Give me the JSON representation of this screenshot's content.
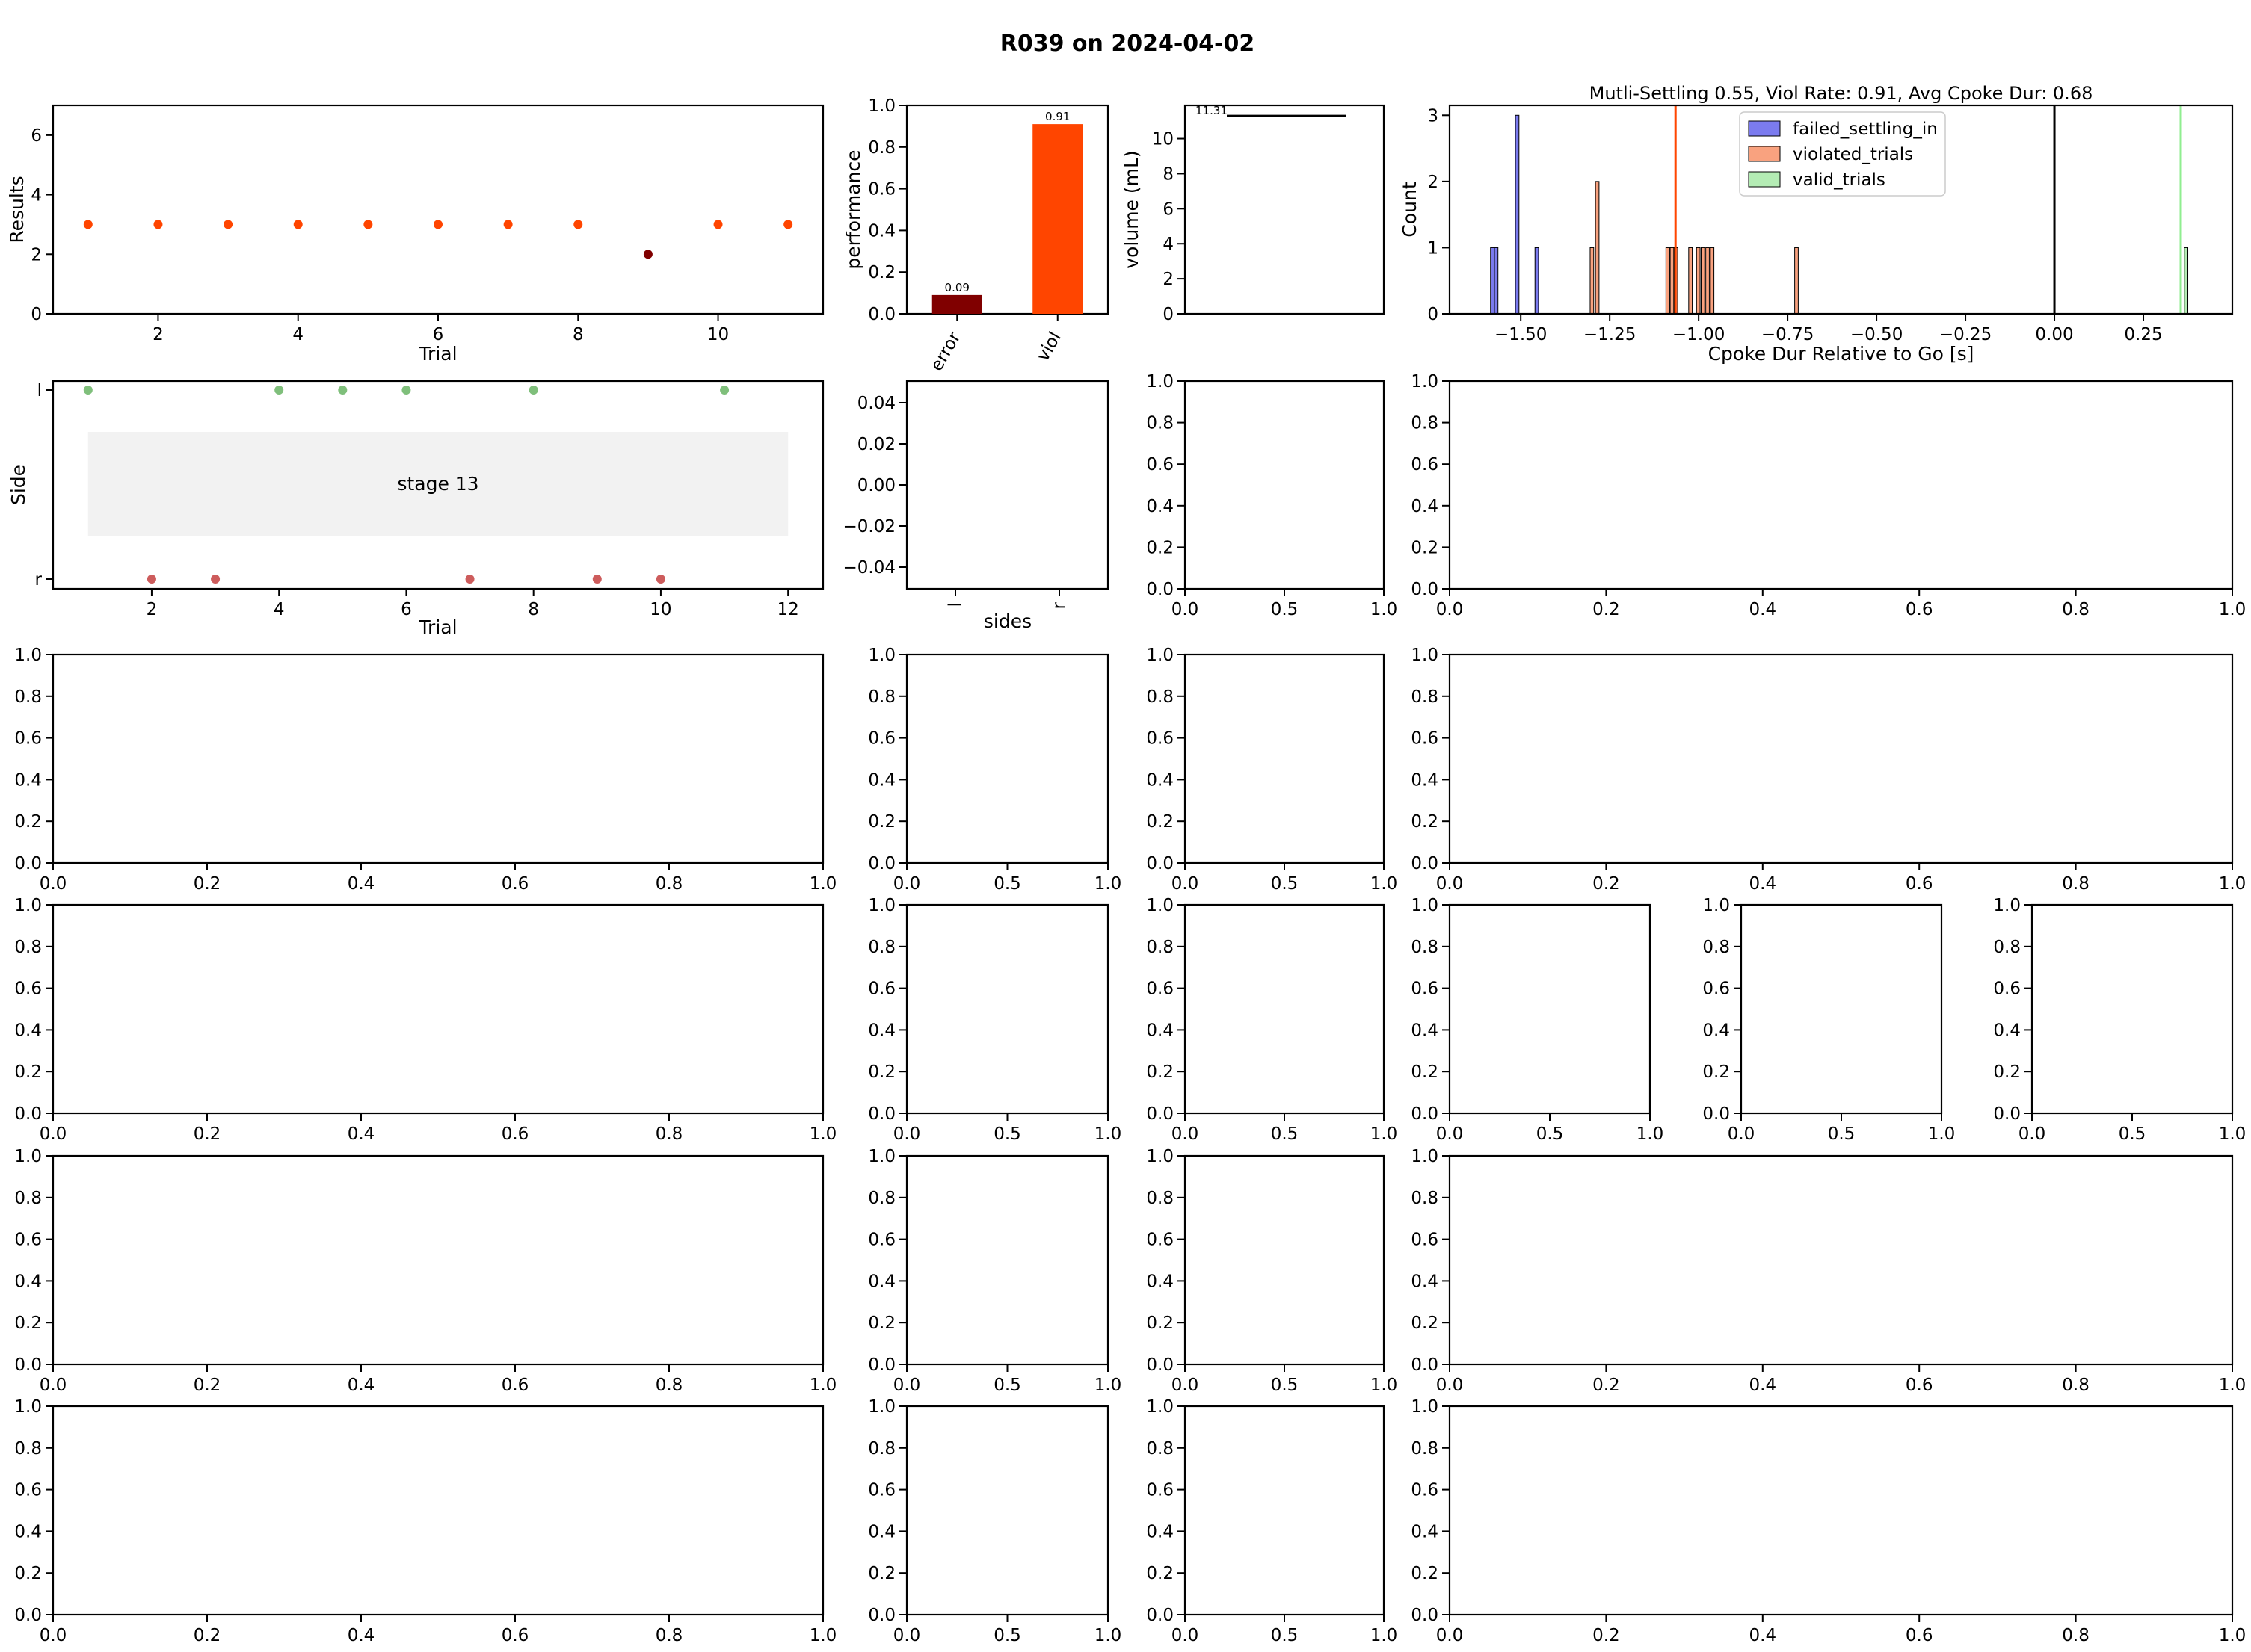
{
  "figure": {
    "suptitle": "R039 on 2024-04-02"
  },
  "colors": {
    "viol": "#ff4500",
    "error": "#800000",
    "hit_l": "#7fbf7b",
    "hit_r": "#cd5c5c",
    "failed_settling_in": "#7b7bef",
    "violated_trials": "#f9a27f",
    "valid_trials": "#b4ecb4",
    "violation_line": "#ff4500",
    "valid_line": "#90ee90",
    "stage_box": "#f2f2f2"
  },
  "chart_data": [
    {
      "id": "results",
      "type": "scatter",
      "xlabel": "Trial",
      "ylabel": "Results",
      "xlim": [
        0.5,
        11.5
      ],
      "ylim": [
        0,
        7
      ],
      "xticks": [
        2,
        4,
        6,
        8,
        10
      ],
      "yticks": [
        0,
        2,
        4,
        6
      ],
      "points": [
        {
          "x": 1,
          "y": 3,
          "cat": "viol"
        },
        {
          "x": 2,
          "y": 3,
          "cat": "viol"
        },
        {
          "x": 3,
          "y": 3,
          "cat": "viol"
        },
        {
          "x": 4,
          "y": 3,
          "cat": "viol"
        },
        {
          "x": 5,
          "y": 3,
          "cat": "viol"
        },
        {
          "x": 6,
          "y": 3,
          "cat": "viol"
        },
        {
          "x": 7,
          "y": 3,
          "cat": "viol"
        },
        {
          "x": 8,
          "y": 3,
          "cat": "viol"
        },
        {
          "x": 9,
          "y": 2,
          "cat": "error"
        },
        {
          "x": 10,
          "y": 3,
          "cat": "viol"
        },
        {
          "x": 11,
          "y": 3,
          "cat": "viol"
        }
      ]
    },
    {
      "id": "performance",
      "type": "bar",
      "ylabel": "performance",
      "categories": [
        "error",
        "viol"
      ],
      "values": [
        0.09,
        0.91
      ],
      "labels": [
        "0.09",
        "0.91"
      ],
      "ylim": [
        0,
        1
      ],
      "yticks": [
        "0.0",
        "0.2",
        "0.4",
        "0.6",
        "0.8",
        "1.0"
      ]
    },
    {
      "id": "volume",
      "type": "line",
      "ylabel": "volume (mL)",
      "ylim": [
        0,
        11.9
      ],
      "yticks": [
        0,
        2,
        4,
        6,
        8,
        10
      ],
      "value_label": "11.31",
      "value": 11.31
    },
    {
      "id": "cpoke",
      "type": "bar",
      "title": "Mutli-Settling 0.55, Viol Rate: 0.91,  Avg Cpoke Dur: 0.68",
      "xlabel": "Cpoke Dur Relative to Go [s]",
      "ylabel": "Count",
      "xlim": [
        -1.7,
        0.5
      ],
      "ylim": [
        0,
        3.15
      ],
      "xticks": [
        "−1.50",
        "−1.25",
        "−1.00",
        "−0.75",
        "−0.50",
        "−0.25",
        "0.00",
        "0.25"
      ],
      "xtick_values": [
        -1.5,
        -1.25,
        -1.0,
        -0.75,
        -0.5,
        -0.25,
        0.0,
        0.25
      ],
      "yticks": [
        0,
        1,
        2,
        3
      ],
      "bin_width": 0.01,
      "series": [
        {
          "name": "failed_settling_in",
          "bins": [
            [
              -1.585,
              1
            ],
            [
              -1.574,
              1
            ],
            [
              -1.515,
              3
            ],
            [
              -1.46,
              1
            ]
          ]
        },
        {
          "name": "violated_trials",
          "bins": [
            [
              -1.305,
              1
            ],
            [
              -1.29,
              2
            ],
            [
              -1.092,
              1
            ],
            [
              -1.08,
              1
            ],
            [
              -1.069,
              1
            ],
            [
              -1.028,
              1
            ],
            [
              -1.006,
              1
            ],
            [
              -0.993,
              1
            ],
            [
              -0.98,
              1
            ],
            [
              -0.967,
              1
            ],
            [
              -0.73,
              1
            ]
          ]
        },
        {
          "name": "valid_trials",
          "bins": [
            [
              0.365,
              1
            ]
          ]
        }
      ],
      "vlines": [
        {
          "x": -1.065,
          "kind": "violation"
        },
        {
          "x": 0.0,
          "kind": "go"
        },
        {
          "x": 0.355,
          "kind": "valid"
        }
      ],
      "legend_loc": "upper center"
    },
    {
      "id": "side",
      "type": "scatter",
      "xlabel": "Trial",
      "ylabel": "Side",
      "xlim": [
        0.45,
        12.55
      ],
      "xticks": [
        2,
        4,
        6,
        8,
        10,
        12
      ],
      "yticks": [
        "l",
        "r"
      ],
      "annotation": "stage 13",
      "points": [
        {
          "x": 1,
          "side": "l"
        },
        {
          "x": 2,
          "side": "r"
        },
        {
          "x": 3,
          "side": "r"
        },
        {
          "x": 4,
          "side": "l"
        },
        {
          "x": 5,
          "side": "l"
        },
        {
          "x": 6,
          "side": "l"
        },
        {
          "x": 7,
          "side": "r"
        },
        {
          "x": 8,
          "side": "l"
        },
        {
          "x": 9,
          "side": "r"
        },
        {
          "x": 10,
          "side": "r"
        },
        {
          "x": 11,
          "side": "l"
        }
      ]
    },
    {
      "id": "sides_bar",
      "type": "bar",
      "xlabel": "sides",
      "categories": [
        "l",
        "r"
      ],
      "yticks": [
        "0.04",
        "0.02",
        "0.00",
        "−0.02",
        "−0.04"
      ]
    }
  ],
  "empty_ticks": {
    "y": [
      "0.0",
      "0.2",
      "0.4",
      "0.6",
      "0.8",
      "1.0"
    ],
    "x_fine": [
      "0.0",
      "0.2",
      "0.4",
      "0.6",
      "0.8",
      "1.0"
    ],
    "x_coarse": [
      "0.0",
      "0.5",
      "1.0"
    ]
  }
}
